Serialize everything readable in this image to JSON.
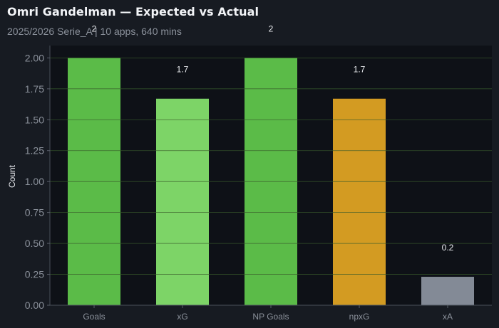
{
  "title": "Omri Gandelman — Expected vs Actual",
  "subtitle": "2025/2026 Serie_A | 10 apps, 640 mins",
  "colors": {
    "background": "#171b22",
    "plot_background": "#0e1117",
    "gridline": "#3a5c2b"
  },
  "chart_data": {
    "type": "bar",
    "categories": [
      "Goals",
      "xG",
      "NP Goals",
      "npxG",
      "xA"
    ],
    "values": [
      2,
      1.67,
      2,
      1.67,
      0.23
    ],
    "data_labels": [
      "2",
      "1.7",
      "2",
      "1.7",
      "0.2"
    ],
    "bar_colors": [
      "#5bbb48",
      "#7dd467",
      "#5bbb48",
      "#d39b22",
      "#838a96"
    ],
    "xlabel": "",
    "ylabel": "Count",
    "ylim": [
      0,
      2.1
    ],
    "yticks": [
      "0.00",
      "0.25",
      "0.50",
      "0.75",
      "1.00",
      "1.25",
      "1.50",
      "1.75",
      "2.00"
    ],
    "grid": true,
    "legend": "none"
  }
}
